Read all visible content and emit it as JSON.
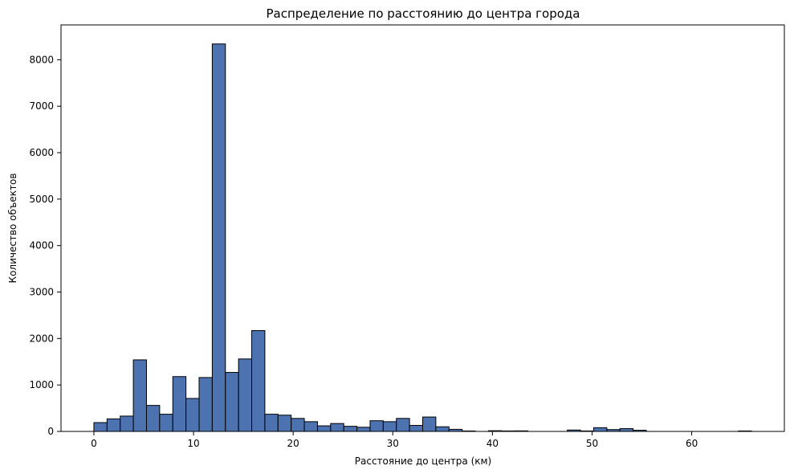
{
  "chart_data": {
    "type": "bar",
    "title": "Распределение по расстоянию до центра города",
    "xlabel": "Расстояние до центра (км)",
    "ylabel": "Количество объектов",
    "bar_color": "#4c72b0",
    "edge_color": "#000000",
    "grid": false,
    "xlim": [
      -3.3,
      69.3
    ],
    "ylim": [
      0,
      8750
    ],
    "xticks": [
      0,
      10,
      20,
      30,
      40,
      50,
      60
    ],
    "yticks": [
      0,
      1000,
      2000,
      3000,
      4000,
      5000,
      6000,
      7000,
      8000
    ],
    "bins": {
      "start": 0,
      "end": 66,
      "count": 50
    },
    "values": [
      190,
      270,
      330,
      1540,
      560,
      370,
      1180,
      710,
      1160,
      8340,
      1270,
      1560,
      2170,
      370,
      350,
      280,
      210,
      120,
      170,
      110,
      90,
      230,
      210,
      280,
      130,
      310,
      100,
      45,
      10,
      0,
      15,
      10,
      12,
      0,
      0,
      0,
      30,
      10,
      80,
      40,
      60,
      25,
      0,
      0,
      0,
      0,
      0,
      0,
      0,
      10
    ]
  }
}
